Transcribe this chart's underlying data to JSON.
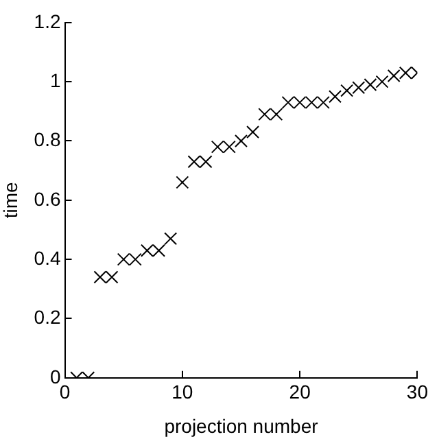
{
  "chart_data": {
    "type": "scatter",
    "xlabel": "projection number",
    "ylabel": "time",
    "marker": "cross",
    "grid": false,
    "legend": false,
    "x": [
      1,
      2,
      3,
      4,
      5,
      6,
      7,
      8,
      9,
      10,
      11,
      12,
      13,
      14,
      15,
      16,
      17,
      18,
      19,
      20,
      21,
      22,
      23,
      24,
      25,
      26,
      27,
      28,
      29,
      30
    ],
    "series": [
      {
        "color": "#000000",
        "values": [
          0,
          0,
          0.34,
          0.34,
          0.4,
          0.4,
          0.43,
          0.43,
          0.47,
          0.66,
          0.73,
          0.73,
          0.78,
          0.78,
          0.8,
          0.83,
          0.89,
          0.89,
          0.93,
          0.93,
          0.93,
          0.93,
          0.95,
          0.97,
          0.98,
          0.99,
          1.0,
          1.02,
          1.03,
          1.03
        ]
      }
    ],
    "xlim": [
      0,
      30
    ],
    "xticks": [
      0,
      10,
      20,
      30
    ],
    "ylim": [
      0,
      1.2
    ],
    "yticks": [
      0,
      0.2,
      0.4,
      0.6,
      0.8,
      {
        "value": 1,
        "label": "1"
      },
      1.2
    ]
  }
}
